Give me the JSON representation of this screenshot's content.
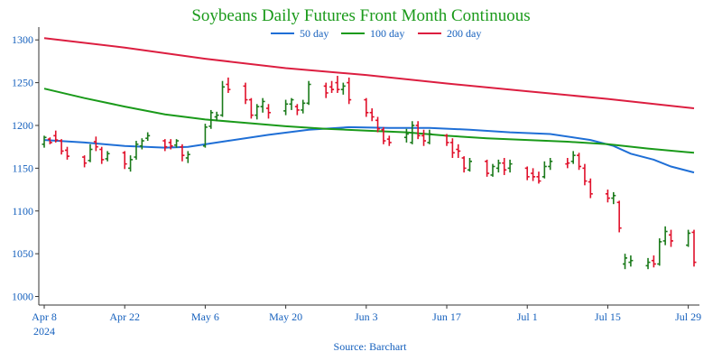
{
  "chart_data": {
    "type": "line",
    "title": "Soybeans Daily Futures Front Month Continuous",
    "source": "Source: Barchart",
    "x_ticks": [
      {
        "label": "Apr 8",
        "sublabel": "2024",
        "date": "2024-04-08"
      },
      {
        "label": "Apr 22",
        "date": "2024-04-22"
      },
      {
        "label": "May 6",
        "date": "2024-05-06"
      },
      {
        "label": "May 20",
        "date": "2024-05-20"
      },
      {
        "label": "Jun 3",
        "date": "2024-06-03"
      },
      {
        "label": "Jun 17",
        "date": "2024-06-17"
      },
      {
        "label": "Jul 1",
        "date": "2024-07-01"
      },
      {
        "label": "Jul 15",
        "date": "2024-07-15"
      },
      {
        "label": "Jul 29",
        "date": "2024-07-29"
      }
    ],
    "x_range": [
      "2024-04-08",
      "2024-07-30"
    ],
    "y_ticks": [
      1000,
      1050,
      1100,
      1150,
      1200,
      1250,
      1300
    ],
    "ylim": [
      990,
      1315
    ],
    "grid": false,
    "legend_position": "top-center",
    "colors": {
      "title": "#1a9a1a",
      "up": "#1a7a1a",
      "down": "#e0102a",
      "axis_text": "#1560bd"
    },
    "series": [
      {
        "name": "50 day",
        "color": "#1f6fd6",
        "points": [
          [
            "2024-04-08",
            1183
          ],
          [
            "2024-04-15",
            1180
          ],
          [
            "2024-04-22",
            1176
          ],
          [
            "2024-04-29",
            1174
          ],
          [
            "2024-05-03",
            1175
          ],
          [
            "2024-05-10",
            1182
          ],
          [
            "2024-05-17",
            1189
          ],
          [
            "2024-05-24",
            1195
          ],
          [
            "2024-05-31",
            1198
          ],
          [
            "2024-06-07",
            1197
          ],
          [
            "2024-06-14",
            1197
          ],
          [
            "2024-06-21",
            1195
          ],
          [
            "2024-06-28",
            1192
          ],
          [
            "2024-07-05",
            1190
          ],
          [
            "2024-07-12",
            1183
          ],
          [
            "2024-07-16",
            1176
          ],
          [
            "2024-07-19",
            1167
          ],
          [
            "2024-07-23",
            1160
          ],
          [
            "2024-07-26",
            1152
          ],
          [
            "2024-07-30",
            1145
          ]
        ]
      },
      {
        "name": "100 day",
        "color": "#1a9a1a",
        "points": [
          [
            "2024-04-08",
            1243
          ],
          [
            "2024-04-15",
            1232
          ],
          [
            "2024-04-22",
            1222
          ],
          [
            "2024-04-29",
            1213
          ],
          [
            "2024-05-06",
            1207
          ],
          [
            "2024-05-13",
            1203
          ],
          [
            "2024-05-20",
            1199
          ],
          [
            "2024-05-27",
            1196
          ],
          [
            "2024-06-03",
            1194
          ],
          [
            "2024-06-10",
            1192
          ],
          [
            "2024-06-17",
            1188
          ],
          [
            "2024-06-24",
            1185
          ],
          [
            "2024-07-01",
            1183
          ],
          [
            "2024-07-08",
            1181
          ],
          [
            "2024-07-15",
            1178
          ],
          [
            "2024-07-22",
            1173
          ],
          [
            "2024-07-30",
            1168
          ]
        ]
      },
      {
        "name": "200 day",
        "color": "#dc1e40",
        "points": [
          [
            "2024-04-08",
            1302
          ],
          [
            "2024-04-22",
            1291
          ],
          [
            "2024-05-06",
            1278
          ],
          [
            "2024-05-20",
            1267
          ],
          [
            "2024-06-03",
            1259
          ],
          [
            "2024-06-17",
            1249
          ],
          [
            "2024-07-01",
            1240
          ],
          [
            "2024-07-15",
            1231
          ],
          [
            "2024-07-30",
            1220
          ]
        ]
      }
    ],
    "ohlc": [
      [
        "2024-04-08",
        1178,
        1188,
        1174,
        1186,
        "up"
      ],
      [
        "2024-04-09",
        1184,
        1186,
        1178,
        1180,
        "down"
      ],
      [
        "2024-04-10",
        1188,
        1194,
        1180,
        1183,
        "down"
      ],
      [
        "2024-04-11",
        1182,
        1184,
        1166,
        1170,
        "down"
      ],
      [
        "2024-04-12",
        1171,
        1175,
        1160,
        1164,
        "down"
      ],
      [
        "2024-04-15",
        1163,
        1165,
        1151,
        1156,
        "down"
      ],
      [
        "2024-04-16",
        1159,
        1178,
        1157,
        1172,
        "up"
      ],
      [
        "2024-04-17",
        1181,
        1187,
        1170,
        1175,
        "down"
      ],
      [
        "2024-04-18",
        1172,
        1175,
        1155,
        1160,
        "down"
      ],
      [
        "2024-04-19",
        1161,
        1170,
        1158,
        1167,
        "up"
      ],
      [
        "2024-04-22",
        1168,
        1170,
        1149,
        1155,
        "down"
      ],
      [
        "2024-04-23",
        1150,
        1165,
        1146,
        1160,
        "up"
      ],
      [
        "2024-04-24",
        1163,
        1182,
        1160,
        1178,
        "up"
      ],
      [
        "2024-04-25",
        1176,
        1185,
        1172,
        1182,
        "up"
      ],
      [
        "2024-04-26",
        1185,
        1192,
        1182,
        1188,
        "up"
      ],
      [
        "2024-04-29",
        1182,
        1184,
        1170,
        1175,
        "down"
      ],
      [
        "2024-04-30",
        1180,
        1184,
        1172,
        1176,
        "down"
      ],
      [
        "2024-05-01",
        1177,
        1184,
        1174,
        1182,
        "up"
      ],
      [
        "2024-05-02",
        1175,
        1178,
        1158,
        1165,
        "down"
      ],
      [
        "2024-05-03",
        1162,
        1170,
        1156,
        1166,
        "up"
      ],
      [
        "2024-05-06",
        1176,
        1202,
        1174,
        1198,
        "up"
      ],
      [
        "2024-05-07",
        1199,
        1218,
        1196,
        1215,
        "up"
      ],
      [
        "2024-05-08",
        1210,
        1216,
        1205,
        1212,
        "up"
      ],
      [
        "2024-05-09",
        1212,
        1252,
        1210,
        1245,
        "up"
      ],
      [
        "2024-05-10",
        1248,
        1256,
        1238,
        1242,
        "down"
      ],
      [
        "2024-05-13",
        1246,
        1250,
        1225,
        1230,
        "down"
      ],
      [
        "2024-05-14",
        1230,
        1232,
        1208,
        1212,
        "down"
      ],
      [
        "2024-05-15",
        1212,
        1225,
        1207,
        1222,
        "up"
      ],
      [
        "2024-05-16",
        1222,
        1232,
        1215,
        1228,
        "up"
      ],
      [
        "2024-05-17",
        1220,
        1225,
        1208,
        1215,
        "down"
      ],
      [
        "2024-05-20",
        1217,
        1230,
        1212,
        1225,
        "up"
      ],
      [
        "2024-05-21",
        1225,
        1232,
        1218,
        1230,
        "up"
      ],
      [
        "2024-05-22",
        1222,
        1225,
        1212,
        1218,
        "down"
      ],
      [
        "2024-05-23",
        1218,
        1230,
        1214,
        1226,
        "up"
      ],
      [
        "2024-05-24",
        1226,
        1252,
        1224,
        1248,
        "up"
      ],
      [
        "2024-05-27",
        1246,
        1250,
        1232,
        1238,
        "down"
      ],
      [
        "2024-05-28",
        1245,
        1252,
        1238,
        1242,
        "down"
      ],
      [
        "2024-05-29",
        1250,
        1258,
        1238,
        1242,
        "down"
      ],
      [
        "2024-05-30",
        1242,
        1250,
        1236,
        1246,
        "up"
      ],
      [
        "2024-05-31",
        1250,
        1256,
        1225,
        1230,
        "down"
      ],
      [
        "2024-06-03",
        1230,
        1232,
        1210,
        1215,
        "down"
      ],
      [
        "2024-06-04",
        1215,
        1220,
        1205,
        1210,
        "down"
      ],
      [
        "2024-06-05",
        1206,
        1210,
        1192,
        1196,
        "down"
      ],
      [
        "2024-06-06",
        1195,
        1198,
        1178,
        1182,
        "down"
      ],
      [
        "2024-06-07",
        1184,
        1188,
        1176,
        1180,
        "down"
      ],
      [
        "2024-06-10",
        1186,
        1196,
        1180,
        1190,
        "up"
      ],
      [
        "2024-06-11",
        1180,
        1205,
        1178,
        1200,
        "up"
      ],
      [
        "2024-06-12",
        1200,
        1205,
        1184,
        1188,
        "down"
      ],
      [
        "2024-06-13",
        1188,
        1195,
        1176,
        1182,
        "down"
      ],
      [
        "2024-06-14",
        1180,
        1195,
        1178,
        1190,
        "up"
      ],
      [
        "2024-06-17",
        1188,
        1190,
        1176,
        1180,
        "down"
      ],
      [
        "2024-06-18",
        1180,
        1185,
        1162,
        1168,
        "down"
      ],
      [
        "2024-06-19",
        1172,
        1178,
        1162,
        1170,
        "down"
      ],
      [
        "2024-06-20",
        1162,
        1164,
        1145,
        1150,
        "down"
      ],
      [
        "2024-06-21",
        1148,
        1162,
        1146,
        1158,
        "up"
      ],
      [
        "2024-06-24",
        1158,
        1160,
        1140,
        1144,
        "down"
      ],
      [
        "2024-06-25",
        1142,
        1155,
        1140,
        1152,
        "up"
      ],
      [
        "2024-06-26",
        1150,
        1160,
        1145,
        1156,
        "up"
      ],
      [
        "2024-06-27",
        1156,
        1162,
        1142,
        1148,
        "down"
      ],
      [
        "2024-06-28",
        1150,
        1160,
        1145,
        1155,
        "up"
      ],
      [
        "2024-07-01",
        1150,
        1152,
        1136,
        1140,
        "down"
      ],
      [
        "2024-07-02",
        1144,
        1150,
        1135,
        1140,
        "down"
      ],
      [
        "2024-07-03",
        1140,
        1146,
        1132,
        1135,
        "down"
      ],
      [
        "2024-07-04",
        1140,
        1158,
        1138,
        1152,
        "up"
      ],
      [
        "2024-07-05",
        1152,
        1162,
        1148,
        1158,
        "up"
      ],
      [
        "2024-07-08",
        1155,
        1162,
        1150,
        1156,
        "down"
      ],
      [
        "2024-07-09",
        1158,
        1170,
        1155,
        1165,
        "up"
      ],
      [
        "2024-07-10",
        1165,
        1168,
        1148,
        1152,
        "down"
      ],
      [
        "2024-07-11",
        1150,
        1155,
        1130,
        1135,
        "down"
      ],
      [
        "2024-07-12",
        1134,
        1138,
        1115,
        1120,
        "down"
      ],
      [
        "2024-07-15",
        1120,
        1125,
        1110,
        1115,
        "down"
      ],
      [
        "2024-07-16",
        1115,
        1122,
        1108,
        1118,
        "up"
      ],
      [
        "2024-07-17",
        1110,
        1112,
        1075,
        1080,
        "down"
      ],
      [
        "2024-07-18",
        1038,
        1050,
        1032,
        1045,
        "up"
      ],
      [
        "2024-07-19",
        1040,
        1048,
        1035,
        1042,
        "up"
      ],
      [
        "2024-07-22",
        1036,
        1045,
        1032,
        1040,
        "up"
      ],
      [
        "2024-07-23",
        1042,
        1048,
        1034,
        1038,
        "down"
      ],
      [
        "2024-07-24",
        1038,
        1068,
        1036,
        1064,
        "up"
      ],
      [
        "2024-07-25",
        1065,
        1082,
        1060,
        1076,
        "up"
      ],
      [
        "2024-07-26",
        1072,
        1078,
        1058,
        1065,
        "down"
      ],
      [
        "2024-07-29",
        1060,
        1078,
        1058,
        1074,
        "up"
      ],
      [
        "2024-07-30",
        1075,
        1078,
        1035,
        1040,
        "down"
      ]
    ]
  }
}
